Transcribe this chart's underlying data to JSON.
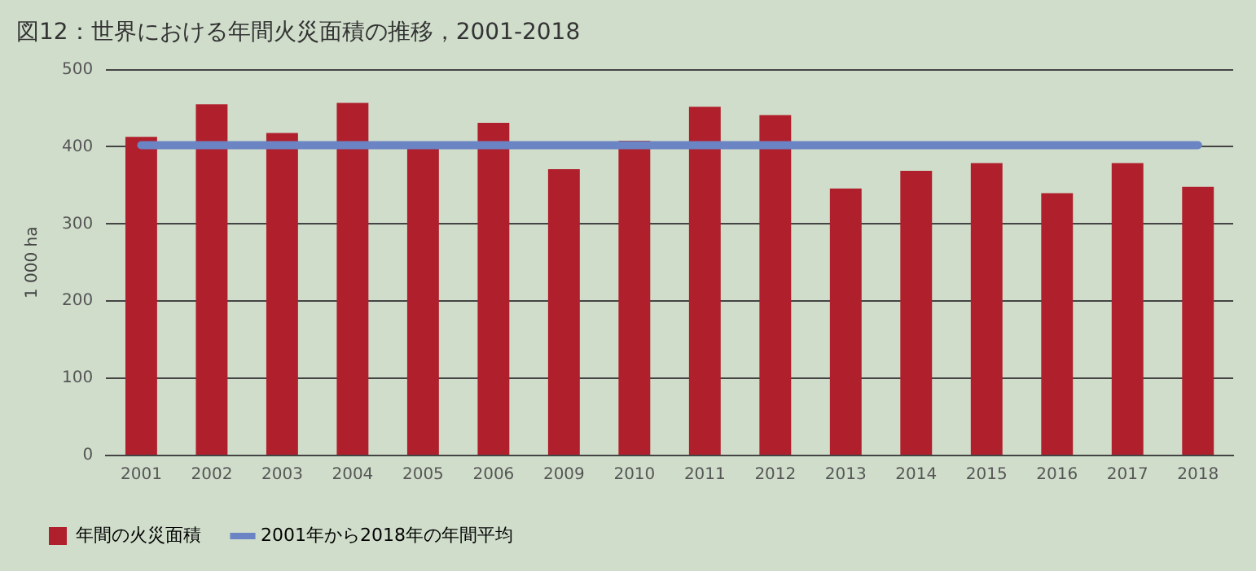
{
  "chart_data": {
    "type": "bar",
    "title": "図12：世界における年間火災面積の推移，2001-2018",
    "ylabel": "1 000 ha",
    "categories": [
      "2001",
      "2002",
      "2003",
      "2004",
      "2005",
      "2006",
      "2009",
      "2010",
      "2011",
      "2012",
      "2013",
      "2014",
      "2015",
      "2016",
      "2017",
      "2018"
    ],
    "series": [
      {
        "name": "年間の火災面積",
        "color": "#b01f2c",
        "values": [
          413,
          455,
          418,
          457,
          399,
          431,
          371,
          408,
          452,
          441,
          346,
          369,
          379,
          340,
          379,
          348
        ]
      },
      {
        "name": "2001年から2018年の年間平均",
        "type": "line",
        "color": "#6a84c4",
        "values": [
          402,
          402,
          402,
          402,
          402,
          402,
          402,
          402,
          402,
          402,
          402,
          402,
          402,
          402,
          402,
          402
        ]
      }
    ],
    "ylim": [
      0,
      500
    ],
    "yticks": [
      0,
      100,
      200,
      300,
      400,
      500
    ],
    "grid": "y",
    "legend": "bottom",
    "marker": "none"
  }
}
